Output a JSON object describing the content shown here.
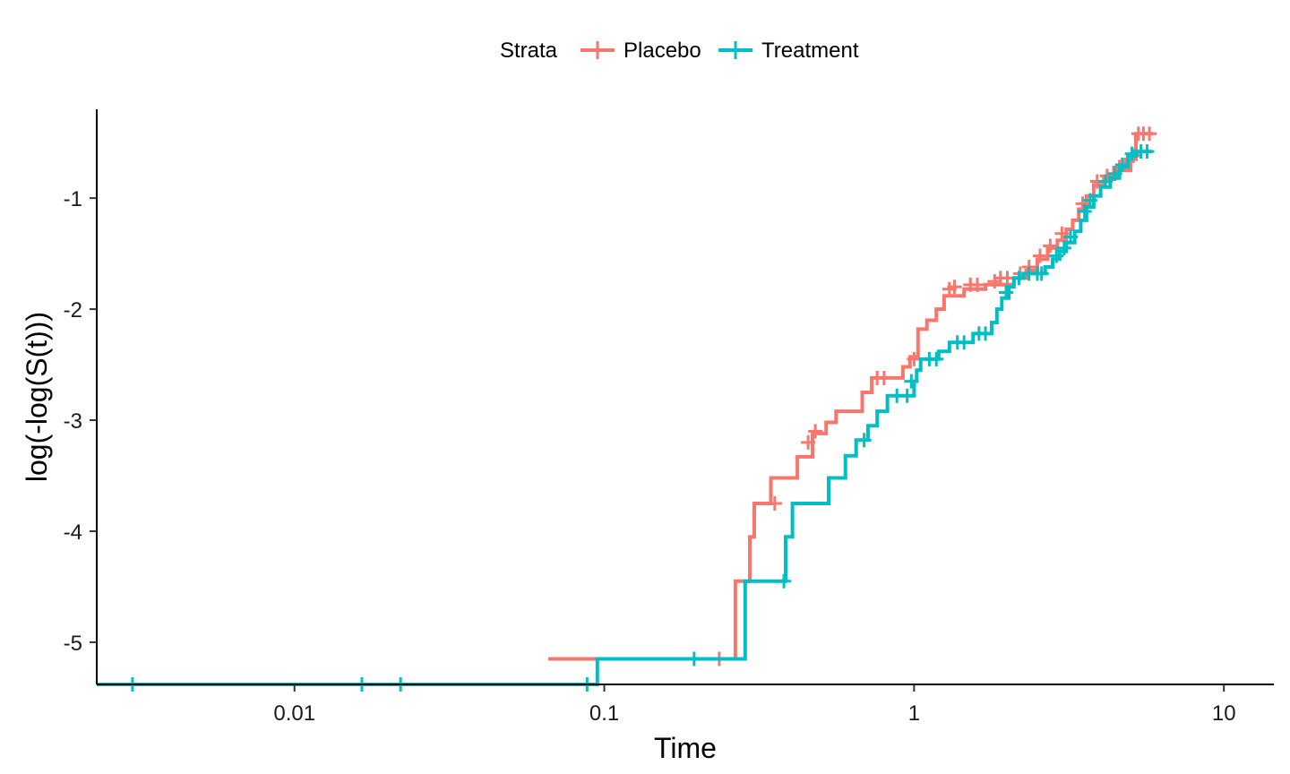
{
  "chart_data": {
    "type": "line",
    "subtype": "step",
    "xlabel": "Time",
    "ylabel": "log(-log(S(t)))",
    "x_scale": "log10",
    "xlim": [
      0.0023,
      14.5
    ],
    "ylim": [
      -5.38,
      -0.2
    ],
    "x_ticks": [
      {
        "value": 0.01,
        "label": "0.01"
      },
      {
        "value": 0.1,
        "label": "0.1"
      },
      {
        "value": 1,
        "label": "1"
      },
      {
        "value": 10,
        "label": "10"
      }
    ],
    "y_ticks": [
      {
        "value": -5,
        "label": "-5"
      },
      {
        "value": -4,
        "label": "-4"
      },
      {
        "value": -3,
        "label": "-3"
      },
      {
        "value": -2,
        "label": "-2"
      },
      {
        "value": -1,
        "label": "-1"
      }
    ],
    "legend": {
      "title": "Strata",
      "position": "top"
    },
    "grid": false,
    "series": [
      {
        "name": "Placebo",
        "color": "#F8766D",
        "steps": [
          [
            0.066,
            -5.15
          ],
          [
            0.265,
            -4.45
          ],
          [
            0.295,
            -4.05
          ],
          [
            0.305,
            -3.75
          ],
          [
            0.345,
            -3.52
          ],
          [
            0.42,
            -3.33
          ],
          [
            0.47,
            -3.12
          ],
          [
            0.52,
            -3.02
          ],
          [
            0.56,
            -2.92
          ],
          [
            0.68,
            -2.75
          ],
          [
            0.73,
            -2.62
          ],
          [
            0.92,
            -2.52
          ],
          [
            0.97,
            -2.43
          ],
          [
            1.03,
            -2.18
          ],
          [
            1.1,
            -2.1
          ],
          [
            1.18,
            -2.0
          ],
          [
            1.25,
            -1.88
          ],
          [
            1.45,
            -1.82
          ],
          [
            1.7,
            -1.78
          ],
          [
            2.1,
            -1.72
          ],
          [
            2.3,
            -1.65
          ],
          [
            2.5,
            -1.55
          ],
          [
            2.7,
            -1.45
          ],
          [
            2.9,
            -1.38
          ],
          [
            3.1,
            -1.28
          ],
          [
            3.25,
            -1.2
          ],
          [
            3.4,
            -1.1
          ],
          [
            3.6,
            -0.98
          ],
          [
            3.8,
            -0.88
          ],
          [
            4.1,
            -0.82
          ],
          [
            4.5,
            -0.75
          ],
          [
            5.0,
            -0.65
          ],
          [
            5.2,
            -0.42
          ]
        ],
        "x_end": 5.9,
        "censor": [
          [
            0.235,
            -5.15
          ],
          [
            0.355,
            -3.75
          ],
          [
            0.455,
            -3.2
          ],
          [
            0.48,
            -3.1
          ],
          [
            0.76,
            -2.62
          ],
          [
            0.8,
            -2.62
          ],
          [
            1.0,
            -2.45
          ],
          [
            1.3,
            -1.82
          ],
          [
            1.35,
            -1.8
          ],
          [
            1.52,
            -1.78
          ],
          [
            1.6,
            -1.78
          ],
          [
            1.82,
            -1.75
          ],
          [
            1.9,
            -1.72
          ],
          [
            2.0,
            -1.72
          ],
          [
            2.2,
            -1.68
          ],
          [
            2.35,
            -1.62
          ],
          [
            2.55,
            -1.52
          ],
          [
            2.75,
            -1.43
          ],
          [
            3.0,
            -1.32
          ],
          [
            3.5,
            -1.05
          ],
          [
            3.9,
            -0.85
          ],
          [
            4.2,
            -0.8
          ],
          [
            4.4,
            -0.78
          ],
          [
            4.6,
            -0.72
          ],
          [
            4.8,
            -0.7
          ],
          [
            5.1,
            -0.62
          ],
          [
            5.3,
            -0.42
          ],
          [
            5.5,
            -0.42
          ],
          [
            5.75,
            -0.42
          ]
        ]
      },
      {
        "name": "Treatment",
        "color": "#00BFC4",
        "steps": [
          [
            0.0023,
            -5.38
          ],
          [
            0.095,
            -5.15
          ],
          [
            0.285,
            -4.45
          ],
          [
            0.385,
            -4.05
          ],
          [
            0.405,
            -3.75
          ],
          [
            0.53,
            -3.52
          ],
          [
            0.6,
            -3.32
          ],
          [
            0.65,
            -3.18
          ],
          [
            0.71,
            -3.05
          ],
          [
            0.76,
            -2.92
          ],
          [
            0.82,
            -2.78
          ],
          [
            1.0,
            -2.65
          ],
          [
            1.02,
            -2.55
          ],
          [
            1.05,
            -2.45
          ],
          [
            1.2,
            -2.38
          ],
          [
            1.3,
            -2.3
          ],
          [
            1.55,
            -2.22
          ],
          [
            1.78,
            -2.12
          ],
          [
            1.85,
            -2.0
          ],
          [
            1.92,
            -1.9
          ],
          [
            2.02,
            -1.8
          ],
          [
            2.1,
            -1.72
          ],
          [
            2.25,
            -1.68
          ],
          [
            2.65,
            -1.62
          ],
          [
            2.8,
            -1.55
          ],
          [
            2.95,
            -1.48
          ],
          [
            3.1,
            -1.4
          ],
          [
            3.3,
            -1.3
          ],
          [
            3.45,
            -1.2
          ],
          [
            3.6,
            -1.08
          ],
          [
            3.8,
            -0.98
          ],
          [
            4.0,
            -0.9
          ],
          [
            4.3,
            -0.82
          ],
          [
            4.6,
            -0.72
          ],
          [
            4.9,
            -0.62
          ],
          [
            5.2,
            -0.58
          ]
        ],
        "x_end": 5.85,
        "censor": [
          [
            0.003,
            -5.38
          ],
          [
            0.0165,
            -5.38
          ],
          [
            0.022,
            -5.38
          ],
          [
            0.088,
            -5.38
          ],
          [
            0.195,
            -5.15
          ],
          [
            0.38,
            -4.45
          ],
          [
            0.69,
            -3.18
          ],
          [
            0.88,
            -2.78
          ],
          [
            0.95,
            -2.78
          ],
          [
            0.98,
            -2.65
          ],
          [
            1.12,
            -2.45
          ],
          [
            1.18,
            -2.45
          ],
          [
            1.38,
            -2.3
          ],
          [
            1.45,
            -2.3
          ],
          [
            1.62,
            -2.22
          ],
          [
            1.7,
            -2.22
          ],
          [
            1.98,
            -1.85
          ],
          [
            2.18,
            -1.72
          ],
          [
            2.35,
            -1.68
          ],
          [
            2.5,
            -1.68
          ],
          [
            2.58,
            -1.68
          ],
          [
            2.88,
            -1.52
          ],
          [
            3.05,
            -1.45
          ],
          [
            3.2,
            -1.35
          ],
          [
            3.55,
            -1.12
          ],
          [
            3.7,
            -1.02
          ],
          [
            4.15,
            -0.85
          ],
          [
            4.45,
            -0.78
          ],
          [
            4.7,
            -0.7
          ],
          [
            5.05,
            -0.6
          ],
          [
            5.4,
            -0.58
          ],
          [
            5.65,
            -0.58
          ]
        ]
      }
    ]
  }
}
